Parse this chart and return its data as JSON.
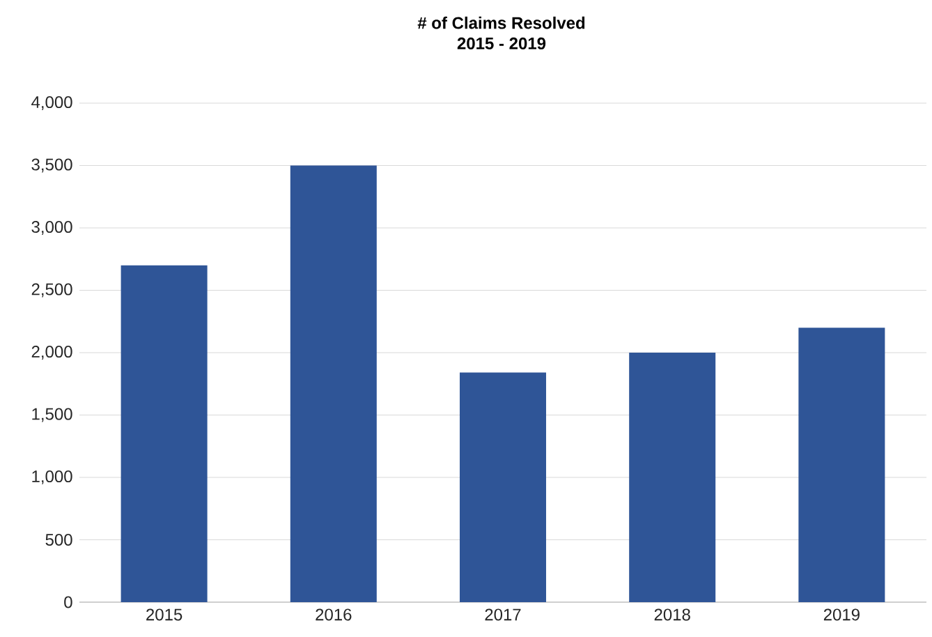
{
  "chart_data": {
    "type": "bar",
    "title": "# of Claims Resolved",
    "subtitle": "2015 - 2019",
    "categories": [
      "2015",
      "2016",
      "2017",
      "2018",
      "2019"
    ],
    "values": [
      2700,
      3500,
      1840,
      2000,
      2200
    ],
    "color": "#2f5597",
    "ylim": [
      0,
      4000
    ],
    "yticks": [
      0,
      500,
      {
        "value": 1000,
        "label": "1,000"
      },
      {
        "value": 1500,
        "label": "1,500"
      },
      {
        "value": 2000,
        "label": "2,000"
      },
      {
        "value": 2500,
        "label": "2,500"
      },
      {
        "value": 3000,
        "label": "3,000"
      },
      {
        "value": 3500,
        "label": "3,500"
      },
      {
        "value": 4000,
        "label": "4,000"
      }
    ],
    "grid": "y"
  }
}
